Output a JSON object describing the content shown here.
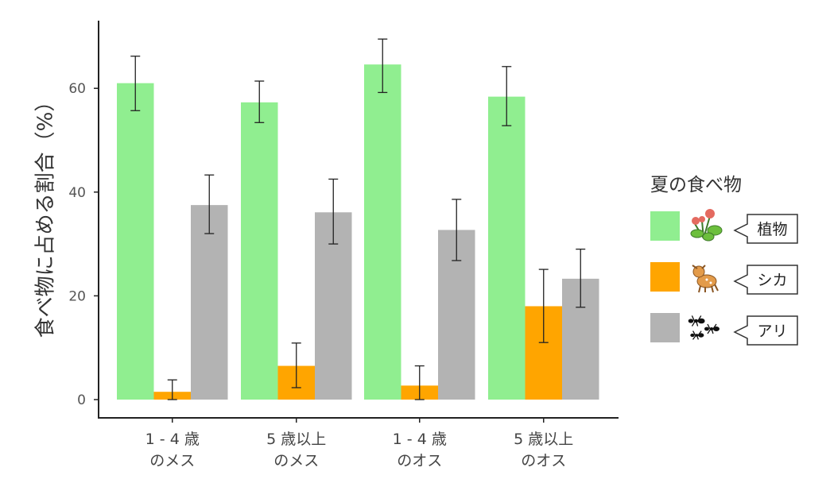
{
  "chart_data": {
    "type": "bar",
    "ylabel": "食べ物に占める割合（%）",
    "xlabel": "",
    "ylim": [
      0,
      73
    ],
    "yticks": [
      0,
      20,
      40,
      60
    ],
    "grid": false,
    "legend_position": "right",
    "categories": [
      [
        "1 - 4 歳",
        "のメス"
      ],
      [
        "5 歳以上",
        "のメス"
      ],
      [
        "1 - 4 歳",
        "のオス"
      ],
      [
        "5 歳以上",
        "のオス"
      ]
    ],
    "legend_title": "夏の食べ物",
    "series": [
      {
        "name": "植物",
        "color": "#90ee90",
        "icon": "clover-plant-icon",
        "values": [
          61.0,
          57.3,
          64.6,
          58.4
        ],
        "error_low": [
          55.7,
          53.4,
          59.2,
          52.8
        ],
        "error_high": [
          66.2,
          61.4,
          69.5,
          64.2
        ]
      },
      {
        "name": "シカ",
        "color": "#ffa500",
        "icon": "fawn-deer-icon",
        "values": [
          1.5,
          6.5,
          2.7,
          18.0
        ],
        "error_low": [
          0.0,
          2.3,
          0.0,
          11.0
        ],
        "error_high": [
          3.8,
          10.9,
          6.5,
          25.1
        ]
      },
      {
        "name": "アリ",
        "color": "#b3b3b3",
        "icon": "ants-icon",
        "values": [
          37.5,
          36.1,
          32.7,
          23.3
        ],
        "error_low": [
          32.0,
          30.0,
          26.8,
          17.8
        ],
        "error_high": [
          43.3,
          42.5,
          38.6,
          29.0
        ]
      }
    ]
  }
}
